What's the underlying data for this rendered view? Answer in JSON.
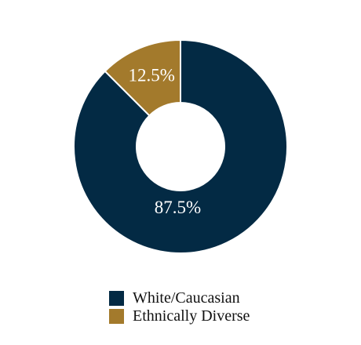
{
  "chart_data": {
    "type": "pie",
    "variant": "donut",
    "categories": [
      "White/Caucasian",
      "Ethnically Diverse"
    ],
    "values": [
      87.5,
      12.5
    ],
    "data_labels": [
      "87.5%",
      "12.5%"
    ],
    "colors": [
      "#032a44",
      "#a37a2c"
    ],
    "title": "",
    "legend": {
      "placement": "bottom",
      "items": [
        {
          "label": "White/Caucasian",
          "color": "#032a44"
        },
        {
          "label": "Ethnically Diverse",
          "color": "#a37a2c"
        }
      ]
    }
  }
}
